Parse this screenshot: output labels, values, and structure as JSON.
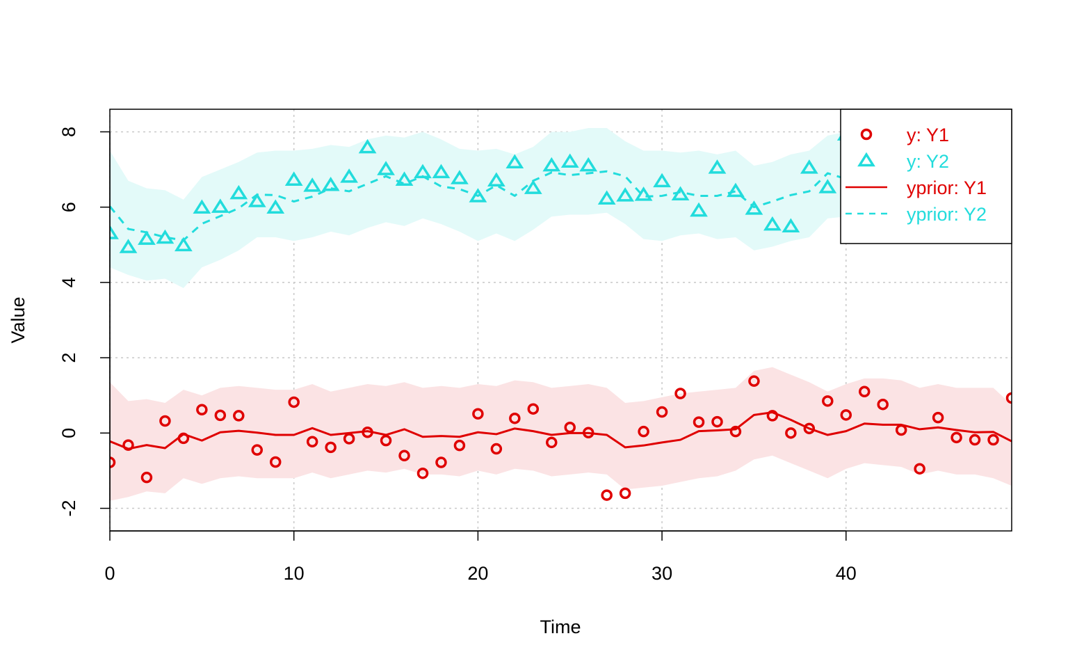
{
  "chart_data": {
    "type": "line",
    "title": "",
    "xlabel": "Time",
    "ylabel": "Value",
    "xlim": [
      0,
      49
    ],
    "ylim": [
      -2.6,
      8.6
    ],
    "xticks": [
      0,
      10,
      20,
      30,
      40
    ],
    "yticks": [
      -2,
      0,
      2,
      4,
      6,
      8
    ],
    "xtick_labels": [
      "0",
      "10",
      "20",
      "30",
      "40"
    ],
    "ytick_labels": [
      "-2",
      "0",
      "2",
      "4",
      "6",
      "8"
    ],
    "grid": true,
    "legend_position": "top-right",
    "x": [
      0,
      1,
      2,
      3,
      4,
      5,
      6,
      7,
      8,
      9,
      10,
      11,
      12,
      13,
      14,
      15,
      16,
      17,
      18,
      19,
      20,
      21,
      22,
      23,
      24,
      25,
      26,
      27,
      28,
      29,
      30,
      31,
      32,
      33,
      34,
      35,
      36,
      37,
      38,
      39,
      40,
      41,
      42,
      43,
      44,
      45,
      46,
      47,
      48,
      49
    ],
    "bands": [
      {
        "color": "#fbe3e4",
        "upper": [
          1.35,
          0.85,
          0.9,
          0.8,
          1.15,
          1.0,
          1.2,
          1.25,
          1.2,
          1.15,
          1.15,
          1.3,
          1.1,
          1.2,
          1.3,
          1.25,
          1.35,
          1.2,
          1.25,
          1.2,
          1.3,
          1.25,
          1.4,
          1.35,
          1.2,
          1.25,
          1.3,
          1.2,
          0.8,
          0.85,
          0.95,
          1.05,
          1.1,
          1.15,
          1.2,
          1.65,
          1.75,
          1.55,
          1.35,
          1.1,
          1.3,
          1.45,
          1.45,
          1.4,
          1.2,
          1.3,
          1.2,
          1.2,
          1.2,
          0.75
        ],
        "lower": [
          -1.8,
          -1.7,
          -1.55,
          -1.6,
          -1.2,
          -1.35,
          -1.2,
          -1.15,
          -1.2,
          -1.2,
          -1.2,
          -1.05,
          -1.2,
          -1.1,
          -1.0,
          -1.05,
          -0.95,
          -1.1,
          -1.1,
          -1.15,
          -1.0,
          -1.1,
          -0.95,
          -1.0,
          -1.15,
          -1.1,
          -1.05,
          -1.1,
          -1.5,
          -1.45,
          -1.4,
          -1.3,
          -1.2,
          -1.15,
          -1.0,
          -0.7,
          -0.6,
          -0.8,
          -1.0,
          -1.2,
          -0.95,
          -0.8,
          -0.85,
          -0.9,
          -1.1,
          -1.0,
          -1.1,
          -1.1,
          -1.2,
          -1.4
        ]
      },
      {
        "color": "#e3faf9",
        "upper": [
          7.5,
          6.7,
          6.5,
          6.45,
          6.2,
          6.8,
          7.0,
          7.2,
          7.45,
          7.5,
          7.5,
          7.55,
          7.65,
          7.6,
          7.8,
          7.9,
          7.85,
          8.0,
          7.8,
          7.55,
          7.5,
          7.55,
          7.4,
          7.6,
          8.0,
          8.0,
          8.1,
          8.1,
          7.75,
          7.5,
          7.5,
          7.45,
          7.5,
          7.4,
          7.5,
          7.1,
          7.2,
          7.4,
          7.5,
          7.9,
          8.0,
          7.9,
          7.9,
          7.85,
          7.8,
          7.6,
          7.6,
          7.6,
          7.5,
          7.45
        ],
        "lower": [
          4.4,
          4.2,
          4.05,
          4.1,
          3.85,
          4.4,
          4.6,
          4.85,
          5.2,
          5.2,
          5.1,
          5.2,
          5.35,
          5.25,
          5.45,
          5.6,
          5.5,
          5.7,
          5.55,
          5.35,
          5.1,
          5.3,
          5.1,
          5.4,
          5.75,
          5.8,
          5.8,
          5.85,
          5.55,
          5.15,
          5.1,
          5.25,
          5.3,
          5.15,
          5.2,
          4.85,
          4.95,
          5.1,
          5.2,
          5.7,
          5.75,
          5.7,
          5.7,
          5.6,
          5.6,
          5.4,
          5.4,
          5.45,
          5.3,
          5.2
        ]
      }
    ],
    "series": [
      {
        "name": "y: Y1",
        "kind": "points",
        "marker": "circle",
        "color": "#df0000",
        "values": [
          -0.78,
          -0.32,
          -1.18,
          0.32,
          -0.14,
          0.62,
          0.47,
          0.46,
          -0.45,
          -0.77,
          0.82,
          -0.23,
          -0.38,
          -0.15,
          0.02,
          -0.2,
          -0.6,
          -1.07,
          -0.78,
          -0.33,
          0.51,
          -0.42,
          0.39,
          0.64,
          -0.25,
          0.15,
          0.01,
          -1.65,
          -1.6,
          0.04,
          0.56,
          1.05,
          0.29,
          0.3,
          0.04,
          1.38,
          0.46,
          0.0,
          0.12,
          0.85,
          0.48,
          1.1,
          0.76,
          0.08,
          -0.95,
          0.41,
          -0.12,
          -0.18,
          -0.18,
          0.93
        ]
      },
      {
        "name": "y: Y2",
        "kind": "points",
        "marker": "triangle",
        "color": "#22dcdc",
        "values": [
          5.3,
          4.93,
          5.15,
          5.18,
          4.98,
          5.98,
          6.0,
          6.36,
          6.15,
          5.98,
          6.72,
          6.56,
          6.58,
          6.8,
          7.58,
          7.0,
          6.72,
          6.92,
          6.92,
          6.76,
          6.28,
          6.7,
          7.18,
          6.5,
          7.1,
          7.2,
          7.1,
          6.22,
          6.3,
          6.32,
          6.68,
          6.33,
          5.9,
          7.04,
          6.42,
          5.95,
          5.53,
          5.48,
          7.04,
          6.52,
          7.92,
          null,
          null,
          null,
          null,
          null,
          null,
          null,
          null,
          null
        ]
      },
      {
        "name": "yprior: Y1",
        "kind": "line",
        "dash": "solid",
        "color": "#df0000",
        "values": [
          -0.22,
          -0.42,
          -0.32,
          -0.4,
          -0.03,
          -0.2,
          0.02,
          0.06,
          0.01,
          -0.05,
          -0.05,
          0.13,
          -0.05,
          0.0,
          0.05,
          -0.05,
          0.1,
          -0.1,
          -0.08,
          -0.1,
          0.02,
          -0.03,
          0.12,
          0.05,
          -0.05,
          0.0,
          0.0,
          -0.05,
          -0.38,
          -0.33,
          -0.25,
          -0.18,
          0.05,
          0.07,
          0.1,
          0.48,
          0.55,
          0.35,
          0.12,
          -0.05,
          0.05,
          0.25,
          0.22,
          0.22,
          0.1,
          0.15,
          0.08,
          0.02,
          0.03,
          -0.22
        ]
      },
      {
        "name": "yprior: Y2",
        "kind": "line",
        "dash": "dashed",
        "color": "#22dcdc",
        "values": [
          6.02,
          5.42,
          5.33,
          5.2,
          5.12,
          5.56,
          5.76,
          5.97,
          6.33,
          6.32,
          6.15,
          6.28,
          6.5,
          6.42,
          6.62,
          6.82,
          6.62,
          6.82,
          6.55,
          6.48,
          6.3,
          6.58,
          6.3,
          6.7,
          6.92,
          6.85,
          6.9,
          6.95,
          6.82,
          6.28,
          6.3,
          6.4,
          6.3,
          6.3,
          6.42,
          6.0,
          6.15,
          6.32,
          6.42,
          6.9,
          6.75,
          6.7,
          6.65,
          6.6,
          6.55,
          6.55,
          6.5,
          6.45,
          6.4,
          6.35
        ]
      }
    ]
  }
}
